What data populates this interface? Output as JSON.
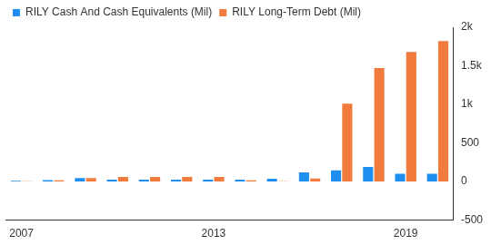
{
  "chart_data": {
    "type": "bar",
    "categories": [
      "2007",
      null,
      null,
      null,
      null,
      null,
      "2013",
      null,
      null,
      null,
      null,
      null,
      "2019",
      null
    ],
    "series": [
      {
        "name": "RILY Cash And Cash Equivalents (Mil)",
        "color": "#1e8ff0",
        "values": [
          10,
          20,
          45,
          25,
          25,
          25,
          25,
          25,
          35,
          120,
          145,
          190,
          100,
          100
        ]
      },
      {
        "name": "RILY Long-Term Debt (Mil)",
        "color": "#f07b3c",
        "values": [
          5,
          15,
          45,
          60,
          60,
          60,
          60,
          15,
          5,
          40,
          1010,
          1470,
          1680,
          1820
        ]
      }
    ],
    "ylim": [
      -500,
      2000
    ],
    "yticks": [
      -500,
      0,
      500,
      {
        "value": 1000,
        "label": "1k"
      },
      {
        "value": 1500,
        "label": "1.5k"
      },
      {
        "value": 2000,
        "label": "2k"
      }
    ],
    "grid": false,
    "legend": "top-left"
  }
}
